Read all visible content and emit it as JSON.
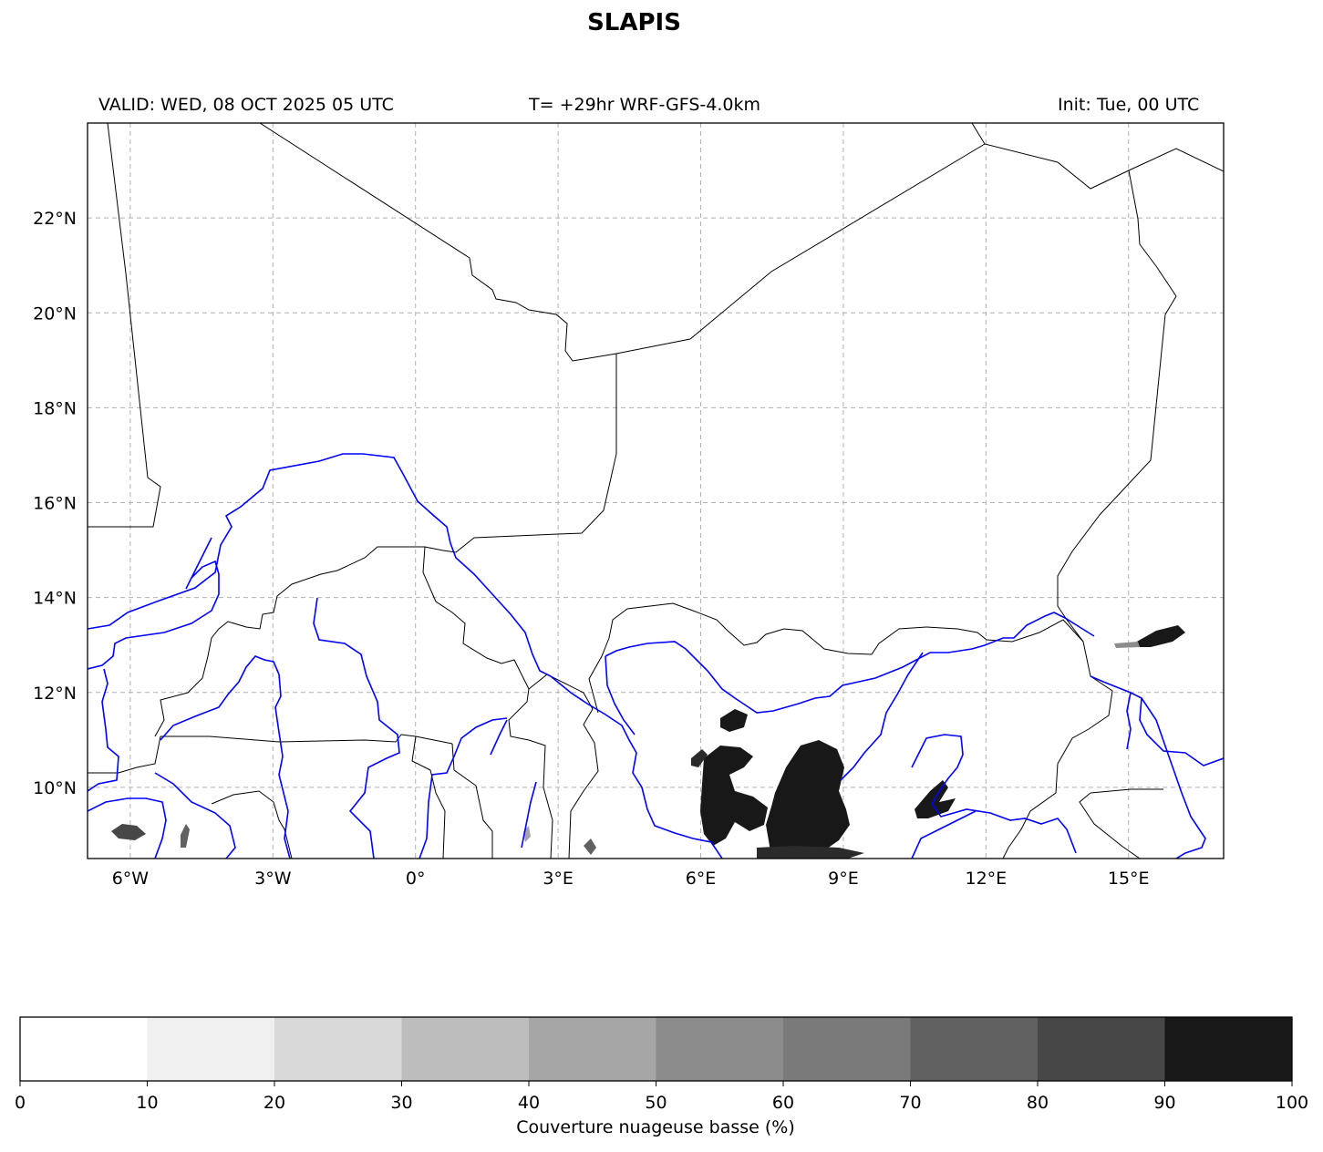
{
  "header": {
    "title": "SLAPIS",
    "valid": "VALID: WED, 08 OCT 2025 05 UTC",
    "run": "T= +29hr WRF-GFS-4.0km",
    "init": "Init: Tue, 00 UTC"
  },
  "map": {
    "lon_range": [
      -6.9,
      17.0
    ],
    "lat_range": [
      8.5,
      24.0
    ],
    "lon_ticks": [
      {
        "value": -6,
        "label": "6°W"
      },
      {
        "value": -3,
        "label": "3°W"
      },
      {
        "value": 0,
        "label": "0°"
      },
      {
        "value": 3,
        "label": "3°E"
      },
      {
        "value": 6,
        "label": "6°E"
      },
      {
        "value": 9,
        "label": "9°E"
      },
      {
        "value": 12,
        "label": "12°E"
      },
      {
        "value": 15,
        "label": "15°E"
      }
    ],
    "lat_ticks": [
      {
        "value": 10,
        "label": "10°N"
      },
      {
        "value": 12,
        "label": "12°N"
      },
      {
        "value": 14,
        "label": "14°N"
      },
      {
        "value": 16,
        "label": "16°N"
      },
      {
        "value": 18,
        "label": "18°N"
      },
      {
        "value": 20,
        "label": "20°N"
      },
      {
        "value": 22,
        "label": "22°N"
      }
    ],
    "gridlines": true,
    "border_color": "#000000",
    "river_color": "#0000ff"
  },
  "colorbar": {
    "label": "Couverture nuageuse basse (%)",
    "ticks": [
      "0",
      "10",
      "20",
      "30",
      "40",
      "50",
      "60",
      "70",
      "80",
      "90",
      "100"
    ],
    "colors": [
      "#ffffff",
      "#f0f0f0",
      "#d9d9d9",
      "#bdbdbd",
      "#a6a6a6",
      "#8c8c8c",
      "#7a7a7a",
      "#616161",
      "#474747",
      "#181818"
    ]
  }
}
